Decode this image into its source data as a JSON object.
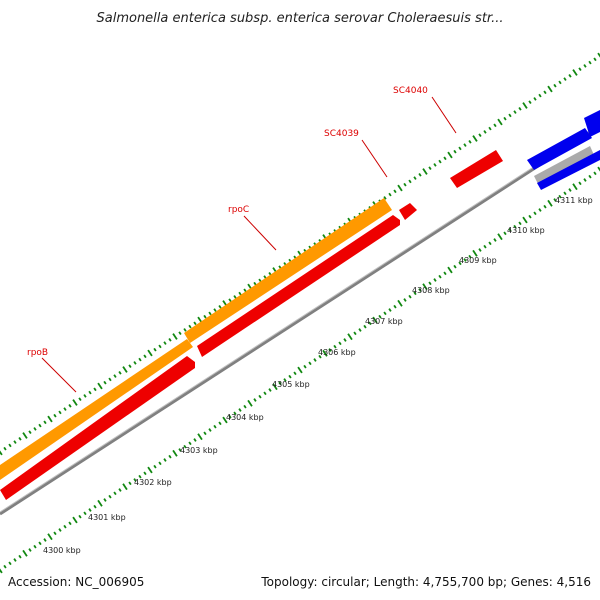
{
  "title": "Salmonella enterica subsp. enterica serovar Choleraesuis str...",
  "footer": {
    "accession": "Accession: NC_006905",
    "summary": "Topology: circular; Length: 4,755,700 bp; Genes: 4,516"
  },
  "colors": {
    "backbone": "#808080",
    "reverse_gene": "#ee0000",
    "forward_gene": "#ff9900",
    "other_gene": "#0000ee",
    "pseudo_gene": "#aaaaaa",
    "tick": "#118811",
    "label": "#dd0000"
  },
  "ruler_labels": [
    "4300 kbp",
    "4301 kbp",
    "4302 kbp",
    "4303 kbp",
    "4304 kbp",
    "4305 kbp",
    "4306 kbp",
    "4307 kbp",
    "4308 kbp",
    "4309 kbp",
    "4310 kbp",
    "4311 kbp"
  ],
  "gene_labels": [
    "rpoB",
    "rpoC",
    "SC4039",
    "SC4040"
  ]
}
